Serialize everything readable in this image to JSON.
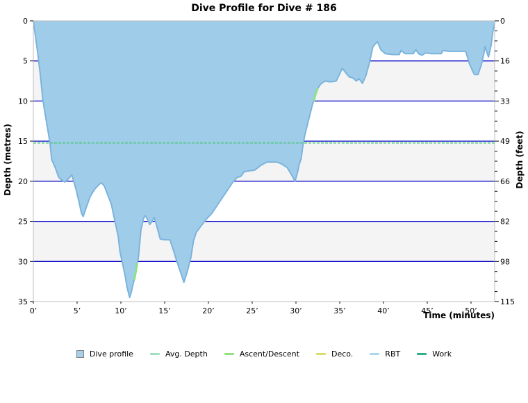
{
  "title": "Dive Profile for Dive # 186",
  "chart_data": {
    "type": "area",
    "title": "Dive Profile for Dive # 186",
    "xlabel": "Time (minutes)",
    "ylabel_left": "Depth (metres)",
    "ylabel_right": "Depth (feet)",
    "xlim": [
      0,
      52.7
    ],
    "ylim_metres": [
      0,
      35
    ],
    "grid": "on",
    "legend_position": "bottom",
    "x_tick_values": [
      0,
      5,
      10,
      15,
      20,
      25,
      30,
      35,
      40,
      45,
      50
    ],
    "x_tick_labels": [
      "0’",
      "5’",
      "10’",
      "15’",
      "20’",
      "25’",
      "30’",
      "35’",
      "40’",
      "45’",
      "50’"
    ],
    "y_tick_values_metres": [
      0,
      5,
      10,
      15,
      20,
      25,
      30,
      35
    ],
    "y_tick_labels_metres": [
      "0",
      "5",
      "10",
      "15",
      "20",
      "25",
      "30",
      "35"
    ],
    "y_tick_labels_feet": [
      "0",
      "16",
      "33",
      "49",
      "66",
      "82",
      "98",
      "115"
    ],
    "grid_depths": [
      5,
      10,
      15,
      20,
      25,
      30
    ],
    "band_depths": [
      [
        5,
        10
      ],
      [
        15,
        20
      ],
      [
        25,
        30
      ]
    ],
    "avg_depth_metres": 15.2,
    "colors": {
      "profile_fill": "#9fcde9",
      "profile_stroke": "#7cb3dc",
      "gridline": "#0404c8",
      "band": "#f4f4f4",
      "frame": "#bcbcbc",
      "avg_depth_line": "#4fc87e",
      "ascent_marker": "#8ee08a",
      "tick": "#000000"
    },
    "legend": [
      {
        "label": "Dive profile",
        "color": "#a6d0e8",
        "type": "square"
      },
      {
        "label": "Avg. Depth",
        "color": "#a5dfc2",
        "type": "line"
      },
      {
        "label": "Ascent/Descent",
        "color": "#96e07c",
        "type": "line"
      },
      {
        "label": "Deco.",
        "color": "#d9dd6e",
        "type": "line"
      },
      {
        "label": "RBT",
        "color": "#a9d8ee",
        "type": "line"
      },
      {
        "label": "Work",
        "color": "#2fae8a",
        "type": "line"
      }
    ],
    "series": [
      {
        "name": "Dive profile",
        "points": [
          [
            0,
            0
          ],
          [
            0.2,
            1.6
          ],
          [
            0.5,
            4.0
          ],
          [
            0.8,
            6.8
          ],
          [
            1.1,
            10.0
          ],
          [
            1.5,
            12.6
          ],
          [
            1.9,
            15.2
          ],
          [
            2.1,
            17.3
          ],
          [
            2.5,
            18.3
          ],
          [
            2.9,
            19.5
          ],
          [
            3.3,
            19.9
          ],
          [
            3.6,
            20.1
          ],
          [
            4.0,
            19.7
          ],
          [
            4.4,
            19.2
          ],
          [
            4.9,
            21.1
          ],
          [
            5.2,
            22.5
          ],
          [
            5.5,
            24.0
          ],
          [
            5.7,
            24.4
          ],
          [
            6.0,
            23.4
          ],
          [
            6.5,
            21.9
          ],
          [
            7.0,
            21.0
          ],
          [
            7.5,
            20.4
          ],
          [
            7.8,
            20.2
          ],
          [
            8.1,
            20.6
          ],
          [
            8.5,
            21.7
          ],
          [
            8.9,
            22.8
          ],
          [
            9.3,
            24.9
          ],
          [
            9.7,
            26.9
          ],
          [
            9.9,
            28.8
          ],
          [
            10.2,
            30.3
          ],
          [
            10.5,
            31.9
          ],
          [
            10.7,
            33.2
          ],
          [
            11.0,
            34.5
          ],
          [
            11.2,
            33.8
          ],
          [
            11.4,
            32.8
          ],
          [
            11.55,
            32.2
          ],
          [
            11.7,
            31.3
          ],
          [
            11.85,
            30.3
          ],
          [
            12.0,
            29.5
          ],
          [
            12.3,
            26.0
          ],
          [
            12.6,
            24.6
          ],
          [
            12.8,
            24.3
          ],
          [
            13.1,
            24.9
          ],
          [
            13.3,
            25.4
          ],
          [
            13.6,
            24.9
          ],
          [
            13.8,
            24.5
          ],
          [
            14.0,
            25.2
          ],
          [
            14.2,
            26.0
          ],
          [
            14.5,
            27.2
          ],
          [
            15.0,
            27.3
          ],
          [
            15.6,
            27.3
          ],
          [
            16.0,
            28.6
          ],
          [
            16.4,
            30.0
          ],
          [
            16.8,
            31.3
          ],
          [
            17.2,
            32.6
          ],
          [
            17.6,
            31.2
          ],
          [
            18.0,
            29.5
          ],
          [
            18.3,
            27.4
          ],
          [
            18.6,
            26.4
          ],
          [
            19.0,
            25.8
          ],
          [
            19.7,
            24.8
          ],
          [
            20.4,
            24.0
          ],
          [
            21.2,
            22.7
          ],
          [
            22.0,
            21.4
          ],
          [
            22.8,
            20.1
          ],
          [
            23.3,
            19.5
          ],
          [
            23.7,
            19.4
          ],
          [
            24.1,
            18.8
          ],
          [
            24.7,
            18.7
          ],
          [
            25.3,
            18.6
          ],
          [
            26.0,
            18.0
          ],
          [
            26.7,
            17.6
          ],
          [
            27.8,
            17.6
          ],
          [
            28.3,
            17.8
          ],
          [
            29.0,
            18.3
          ],
          [
            29.5,
            19.2
          ],
          [
            29.9,
            20.0
          ],
          [
            30.2,
            18.8
          ],
          [
            30.4,
            17.8
          ],
          [
            30.6,
            17.2
          ],
          [
            30.8,
            15.5
          ],
          [
            31.0,
            14.3
          ],
          [
            31.5,
            12.1
          ],
          [
            31.9,
            10.4
          ],
          [
            32.1,
            9.8
          ],
          [
            32.4,
            8.6
          ],
          [
            32.8,
            7.9
          ],
          [
            33.3,
            7.5
          ],
          [
            33.9,
            7.6
          ],
          [
            34.6,
            7.5
          ],
          [
            35.0,
            6.6
          ],
          [
            35.3,
            5.9
          ],
          [
            35.7,
            6.5
          ],
          [
            36.1,
            7.0
          ],
          [
            36.5,
            7.1
          ],
          [
            36.9,
            7.5
          ],
          [
            37.2,
            7.2
          ],
          [
            37.6,
            7.8
          ],
          [
            38.0,
            6.8
          ],
          [
            38.4,
            5.2
          ],
          [
            38.8,
            3.2
          ],
          [
            39.3,
            2.6
          ],
          [
            39.7,
            3.6
          ],
          [
            40.2,
            4.1
          ],
          [
            41.0,
            4.2
          ],
          [
            41.8,
            4.2
          ],
          [
            42.0,
            3.7
          ],
          [
            42.5,
            4.1
          ],
          [
            43.4,
            4.1
          ],
          [
            43.7,
            3.6
          ],
          [
            44.0,
            4.1
          ],
          [
            44.4,
            4.3
          ],
          [
            44.8,
            4.0
          ],
          [
            45.5,
            4.1
          ],
          [
            46.6,
            4.1
          ],
          [
            46.8,
            3.7
          ],
          [
            47.5,
            3.8
          ],
          [
            48.5,
            3.8
          ],
          [
            49.4,
            3.8
          ],
          [
            49.8,
            5.3
          ],
          [
            50.2,
            6.3
          ],
          [
            50.4,
            6.7
          ],
          [
            50.8,
            6.7
          ],
          [
            51.2,
            5.4
          ],
          [
            51.5,
            3.9
          ],
          [
            51.6,
            3.2
          ],
          [
            51.9,
            4.2
          ],
          [
            52.0,
            4.5
          ],
          [
            52.3,
            3.0
          ],
          [
            52.5,
            1.3
          ],
          [
            52.7,
            0.3
          ]
        ]
      },
      {
        "name": "Ascent/Descent",
        "segments": [
          [
            [
              11.55,
              32.2
            ],
            [
              11.7,
              31.3
            ],
            [
              11.85,
              30.3
            ]
          ],
          [
            [
              32.05,
              9.9
            ],
            [
              32.2,
              9.3
            ],
            [
              32.45,
              8.5
            ]
          ]
        ]
      }
    ]
  }
}
